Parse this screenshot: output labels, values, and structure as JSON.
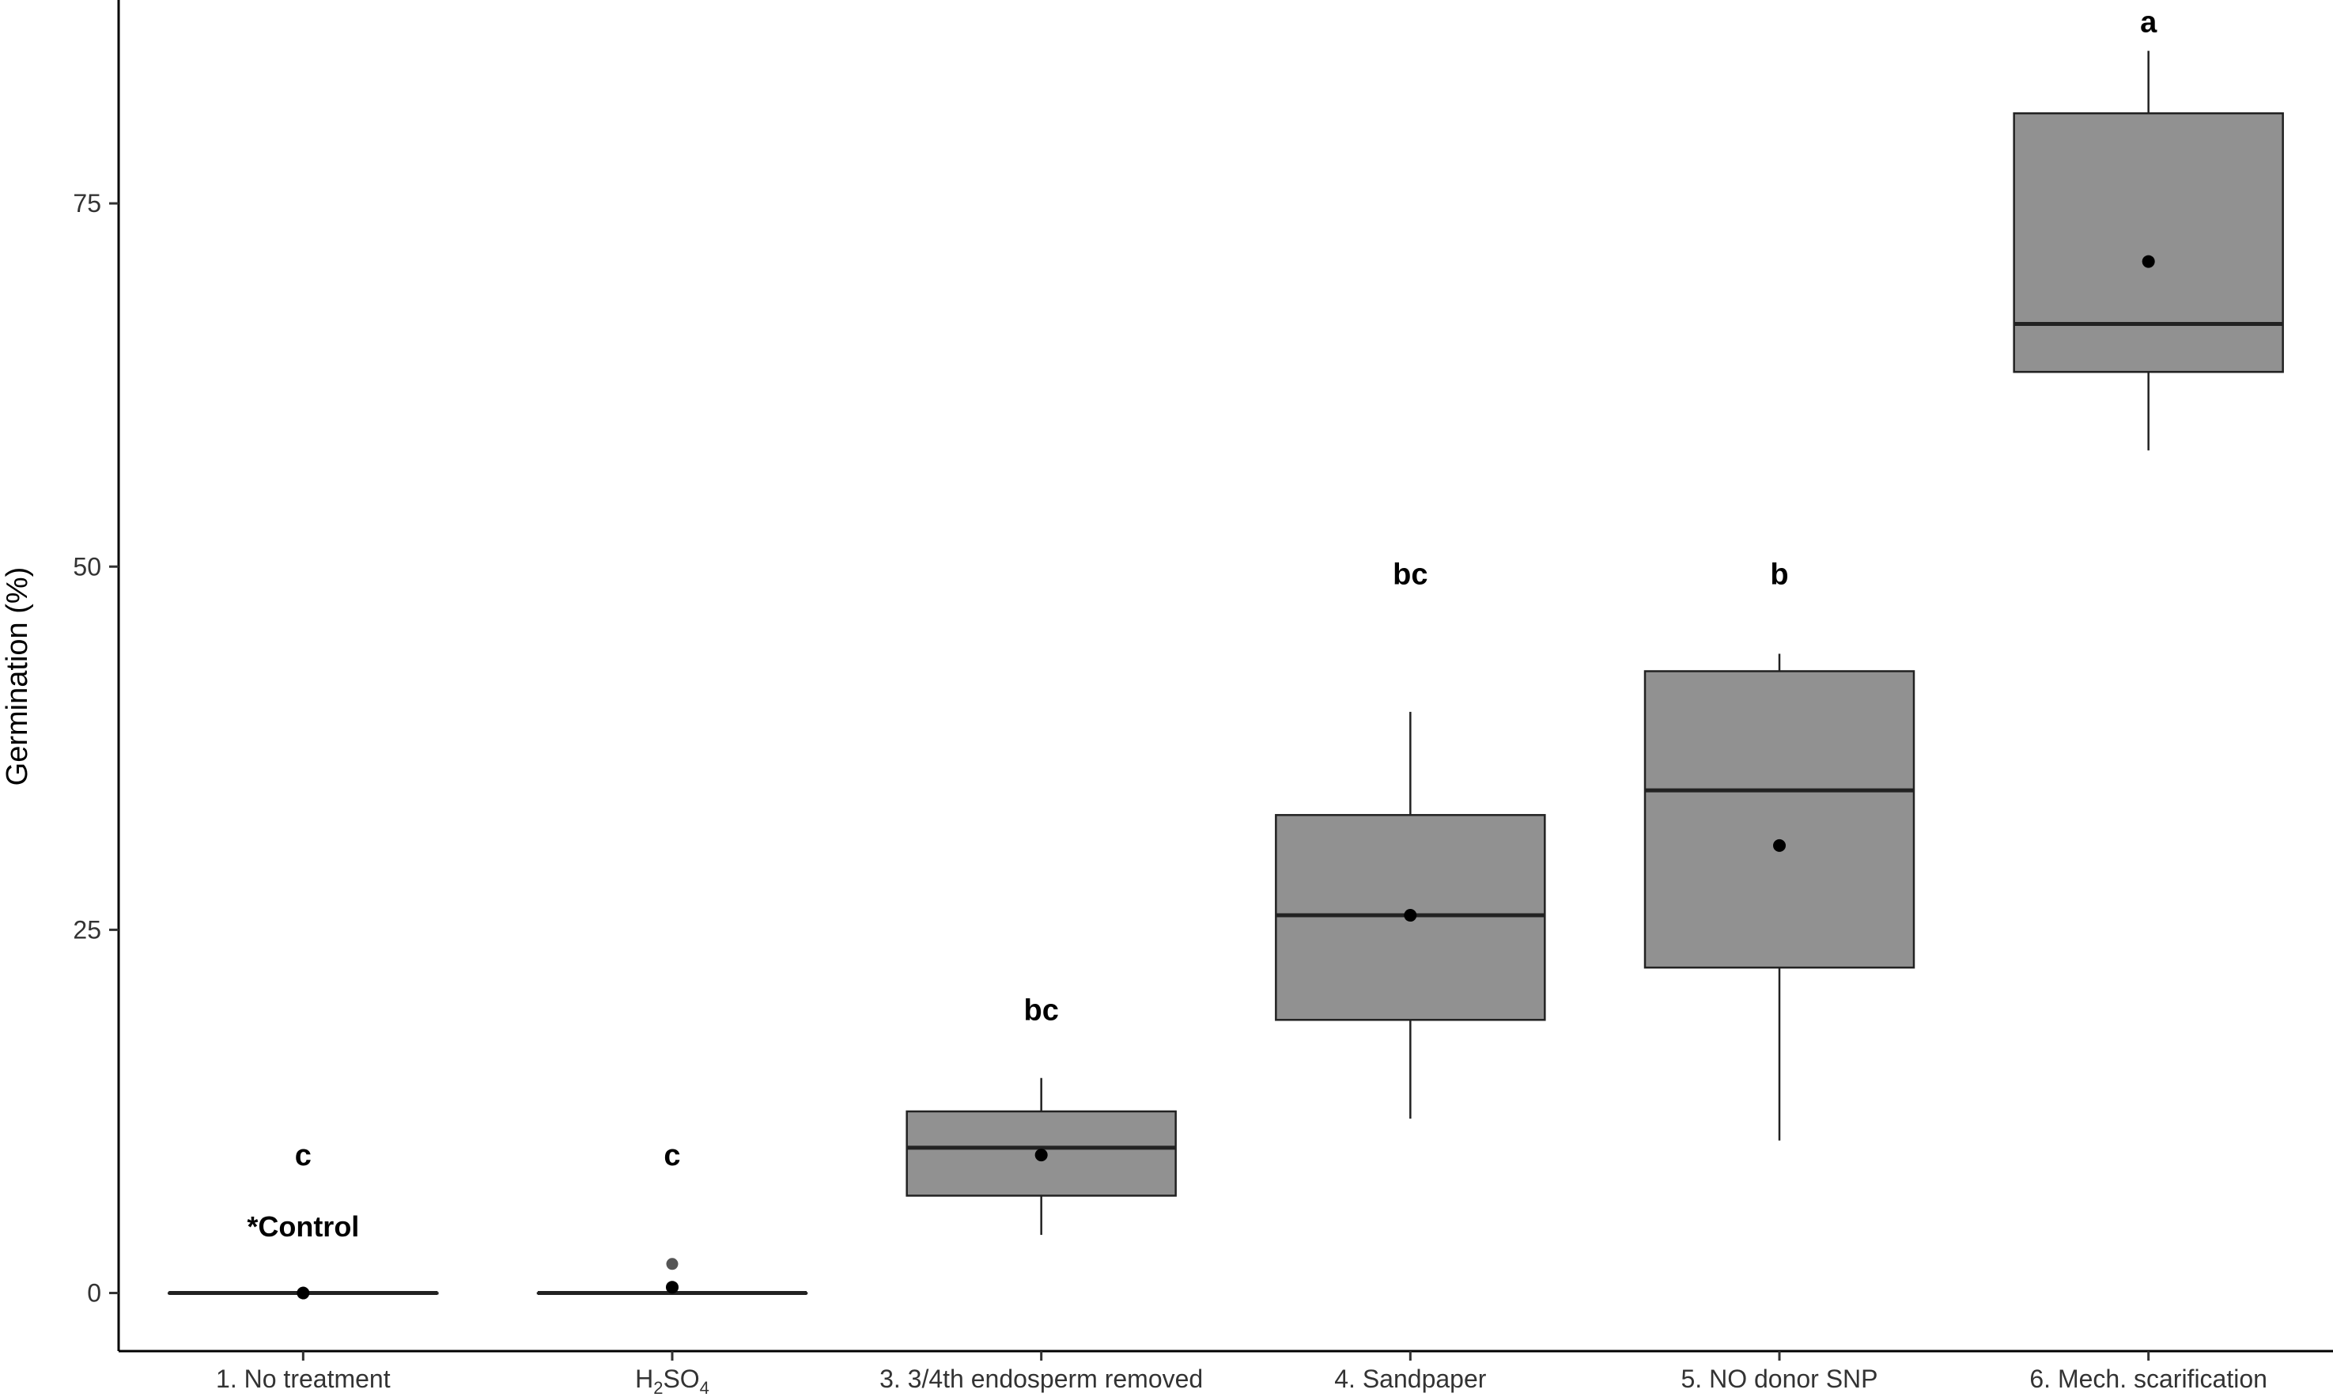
{
  "chart_data": {
    "type": "boxplot",
    "title": "",
    "xlabel": "",
    "ylabel": "Germination (%)",
    "ylim": [
      -4,
      89
    ],
    "yticks": [
      0,
      25,
      50,
      75
    ],
    "grid": false,
    "colors": {
      "box_fill": "#919191",
      "box_stroke": "#222222",
      "axis": "#000000",
      "outlier": "#555555"
    },
    "categories": [
      "1. No treatment",
      "H2SO4",
      "3. 3/4th endosperm removed",
      "4. Sandpaper",
      "5. NO donor SNP",
      "6. Mech. scarification"
    ],
    "h2so4_label": {
      "pre": "H",
      "sub1": "2",
      "mid": "SO",
      "sub2": "4"
    },
    "boxes": [
      {
        "whisker_low": 0,
        "q1": 0,
        "median": 0,
        "q3": 0,
        "whisker_high": 0,
        "mean": 0,
        "outliers": [],
        "letter": "c",
        "note": "*Control"
      },
      {
        "whisker_low": 0,
        "q1": 0,
        "median": 0,
        "q3": 0,
        "whisker_high": 0,
        "mean": 0.4,
        "outliers": [
          2
        ],
        "letter": "c",
        "note": ""
      },
      {
        "whisker_low": 4,
        "q1": 6.7,
        "median": 10,
        "q3": 12.5,
        "whisker_high": 14.8,
        "mean": 9.5,
        "outliers": [],
        "letter": "bc",
        "note": ""
      },
      {
        "whisker_low": 12,
        "q1": 18.8,
        "median": 26,
        "q3": 32.9,
        "whisker_high": 40,
        "mean": 26,
        "outliers": [],
        "letter": "bc",
        "note": ""
      },
      {
        "whisker_low": 10.5,
        "q1": 22.4,
        "median": 34.6,
        "q3": 42.8,
        "whisker_high": 44,
        "mean": 30.8,
        "outliers": [],
        "letter": "b",
        "note": ""
      },
      {
        "whisker_low": 58,
        "q1": 63.4,
        "median": 66.7,
        "q3": 81.2,
        "whisker_high": 85.5,
        "mean": 71,
        "outliers": [],
        "letter": "a",
        "note": ""
      }
    ],
    "letter_y": [
      9.5,
      9.5,
      19.5,
      49.5,
      49.5,
      87.5
    ],
    "note_y": 4.6
  }
}
